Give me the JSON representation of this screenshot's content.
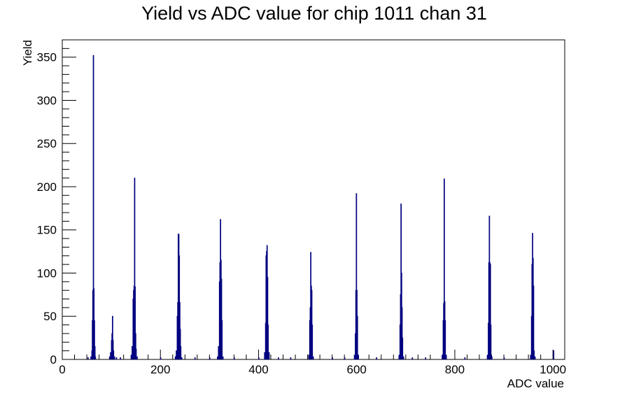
{
  "chart_data": {
    "type": "histogram",
    "title": "Yield vs ADC value for chip 1011 chan 31",
    "xlabel": "ADC value",
    "ylabel": "Yield",
    "xlim": [
      0,
      1024
    ],
    "ylim": [
      0,
      370
    ],
    "x_ticks": [
      0,
      200,
      400,
      600,
      800,
      1000
    ],
    "y_ticks": [
      0,
      50,
      100,
      150,
      200,
      250,
      300,
      350
    ],
    "grid": false,
    "legend": "none",
    "line_color": "#000080",
    "series": [
      {
        "bins": [
          [
            52,
            2
          ],
          [
            58,
            3
          ],
          [
            60,
            10
          ],
          [
            61,
            45
          ],
          [
            62,
            80
          ],
          [
            63,
            352
          ],
          [
            64,
            82
          ],
          [
            65,
            45
          ],
          [
            66,
            15
          ],
          [
            67,
            3
          ],
          [
            96,
            3
          ],
          [
            98,
            8
          ],
          [
            100,
            22
          ],
          [
            101,
            30
          ],
          [
            102,
            50
          ],
          [
            103,
            22
          ],
          [
            104,
            10
          ],
          [
            106,
            3
          ],
          [
            110,
            2
          ],
          [
            118,
            2
          ],
          [
            140,
            5
          ],
          [
            142,
            15
          ],
          [
            144,
            70
          ],
          [
            145,
            80
          ],
          [
            146,
            85
          ],
          [
            147,
            210
          ],
          [
            148,
            84
          ],
          [
            149,
            30
          ],
          [
            150,
            12
          ],
          [
            152,
            3
          ],
          [
            200,
            2
          ],
          [
            230,
            3
          ],
          [
            232,
            10
          ],
          [
            234,
            50
          ],
          [
            235,
            66
          ],
          [
            236,
            145
          ],
          [
            237,
            145
          ],
          [
            238,
            120
          ],
          [
            239,
            66
          ],
          [
            240,
            35
          ],
          [
            241,
            15
          ],
          [
            243,
            2
          ],
          [
            270,
            2
          ],
          [
            300,
            2
          ],
          [
            316,
            3
          ],
          [
            318,
            15
          ],
          [
            320,
            90
          ],
          [
            321,
            112
          ],
          [
            322,
            162
          ],
          [
            323,
            115
          ],
          [
            324,
            93
          ],
          [
            325,
            45
          ],
          [
            327,
            3
          ],
          [
            350,
            2
          ],
          [
            400,
            2
          ],
          [
            412,
            8
          ],
          [
            414,
            42
          ],
          [
            415,
            120
          ],
          [
            416,
            125
          ],
          [
            417,
            132
          ],
          [
            418,
            95
          ],
          [
            419,
            40
          ],
          [
            421,
            8
          ],
          [
            440,
            2
          ],
          [
            465,
            2
          ],
          [
            502,
            5
          ],
          [
            504,
            45
          ],
          [
            505,
            60
          ],
          [
            506,
            124
          ],
          [
            507,
            85
          ],
          [
            508,
            80
          ],
          [
            509,
            40
          ],
          [
            511,
            3
          ],
          [
            550,
            2
          ],
          [
            575,
            2
          ],
          [
            595,
            5
          ],
          [
            597,
            30
          ],
          [
            598,
            80
          ],
          [
            599,
            192
          ],
          [
            600,
            80
          ],
          [
            601,
            50
          ],
          [
            603,
            5
          ],
          [
            640,
            2
          ],
          [
            686,
            5
          ],
          [
            688,
            40
          ],
          [
            689,
            75
          ],
          [
            690,
            180
          ],
          [
            691,
            100
          ],
          [
            692,
            60
          ],
          [
            693,
            25
          ],
          [
            695,
            3
          ],
          [
            713,
            2
          ],
          [
            740,
            2
          ],
          [
            774,
            5
          ],
          [
            776,
            45
          ],
          [
            777,
            65
          ],
          [
            778,
            209
          ],
          [
            779,
            67
          ],
          [
            780,
            45
          ],
          [
            782,
            5
          ],
          [
            820,
            2
          ],
          [
            866,
            5
          ],
          [
            868,
            42
          ],
          [
            869,
            112
          ],
          [
            870,
            166
          ],
          [
            871,
            112
          ],
          [
            872,
            110
          ],
          [
            873,
            40
          ],
          [
            875,
            3
          ],
          [
            900,
            2
          ],
          [
            954,
            5
          ],
          [
            956,
            50
          ],
          [
            957,
            110
          ],
          [
            958,
            146
          ],
          [
            959,
            117
          ],
          [
            960,
            85
          ],
          [
            961,
            10
          ],
          [
            963,
            3
          ],
          [
            1001,
            10
          ]
        ]
      }
    ]
  }
}
